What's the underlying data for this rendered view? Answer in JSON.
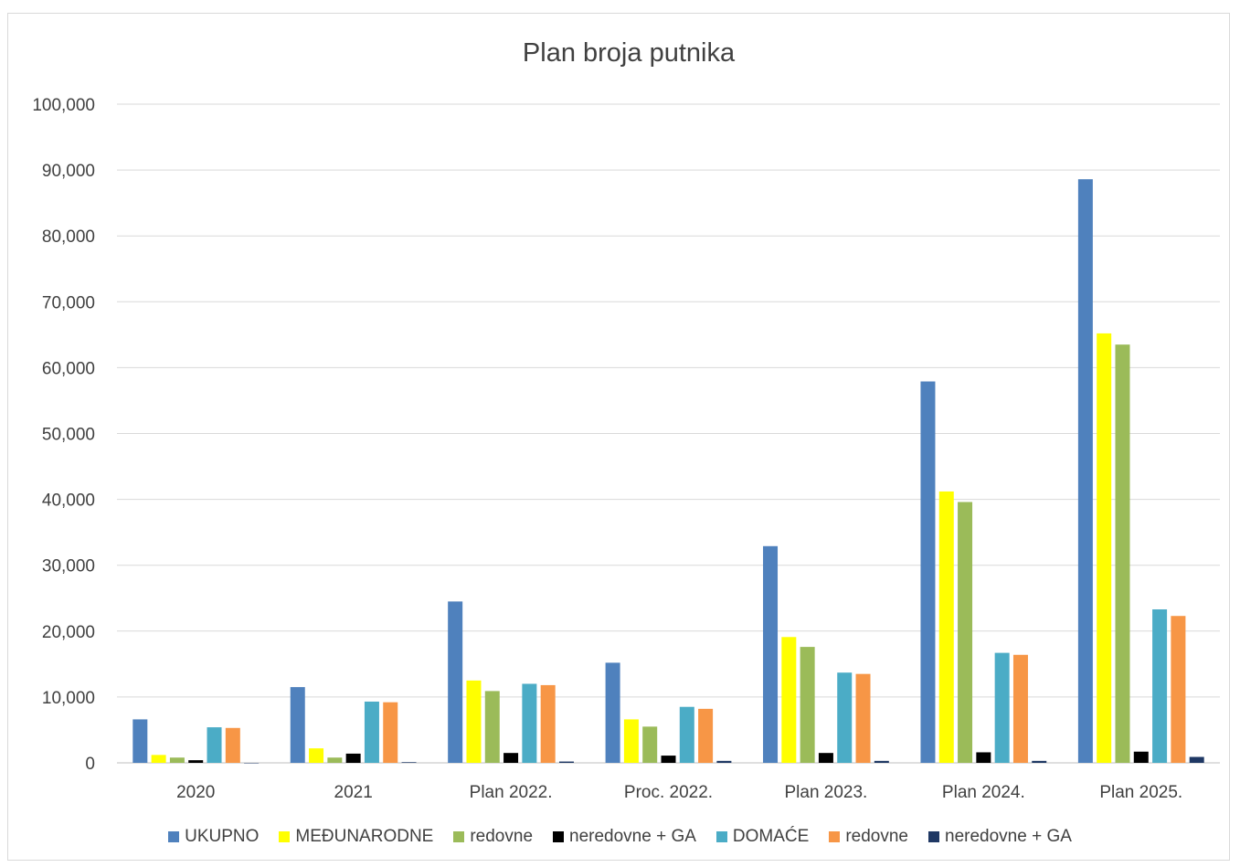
{
  "chart_data": {
    "type": "bar",
    "title": "Plan broja putnika",
    "categories": [
      "2020",
      "2021",
      "Plan 2022.",
      "Proc.  2022.",
      "Plan 2023.",
      "Plan 2024.",
      "Plan 2025."
    ],
    "ylim": [
      0,
      100000
    ],
    "yticks": [
      0,
      10000,
      20000,
      30000,
      40000,
      50000,
      60000,
      70000,
      80000,
      90000,
      100000
    ],
    "ytick_labels": [
      "0",
      "10,000",
      "20,000",
      "30,000",
      "40,000",
      "50,000",
      "60,000",
      "70,000",
      "80,000",
      "90,000",
      "100,000"
    ],
    "grid": true,
    "legend_position": "bottom",
    "series": [
      {
        "name": "UKUPNO",
        "color": "#4f81bd",
        "values": [
          6600,
          11500,
          24500,
          15200,
          32900,
          57900,
          88600
        ]
      },
      {
        "name": "MEĐUNARODNE",
        "color": "#ffff00",
        "values": [
          1200,
          2200,
          12500,
          6600,
          19100,
          41200,
          65200
        ]
      },
      {
        "name": "redovne",
        "color": "#9bbb59",
        "values": [
          800,
          800,
          10900,
          5500,
          17600,
          39600,
          63500
        ]
      },
      {
        "name": "neredovne + GA",
        "color": "#000000",
        "values": [
          400,
          1400,
          1500,
          1100,
          1500,
          1600,
          1700
        ]
      },
      {
        "name": "DOMAĆE",
        "color": "#4bacc6",
        "values": [
          5400,
          9300,
          12000,
          8500,
          13700,
          16700,
          23300
        ]
      },
      {
        "name": "redovne",
        "color": "#f79646",
        "values": [
          5300,
          9200,
          11800,
          8200,
          13500,
          16400,
          22300
        ]
      },
      {
        "name": "neredovne + GA",
        "color": "#1f3864",
        "values": [
          0,
          100,
          200,
          300,
          300,
          300,
          900
        ]
      }
    ]
  }
}
